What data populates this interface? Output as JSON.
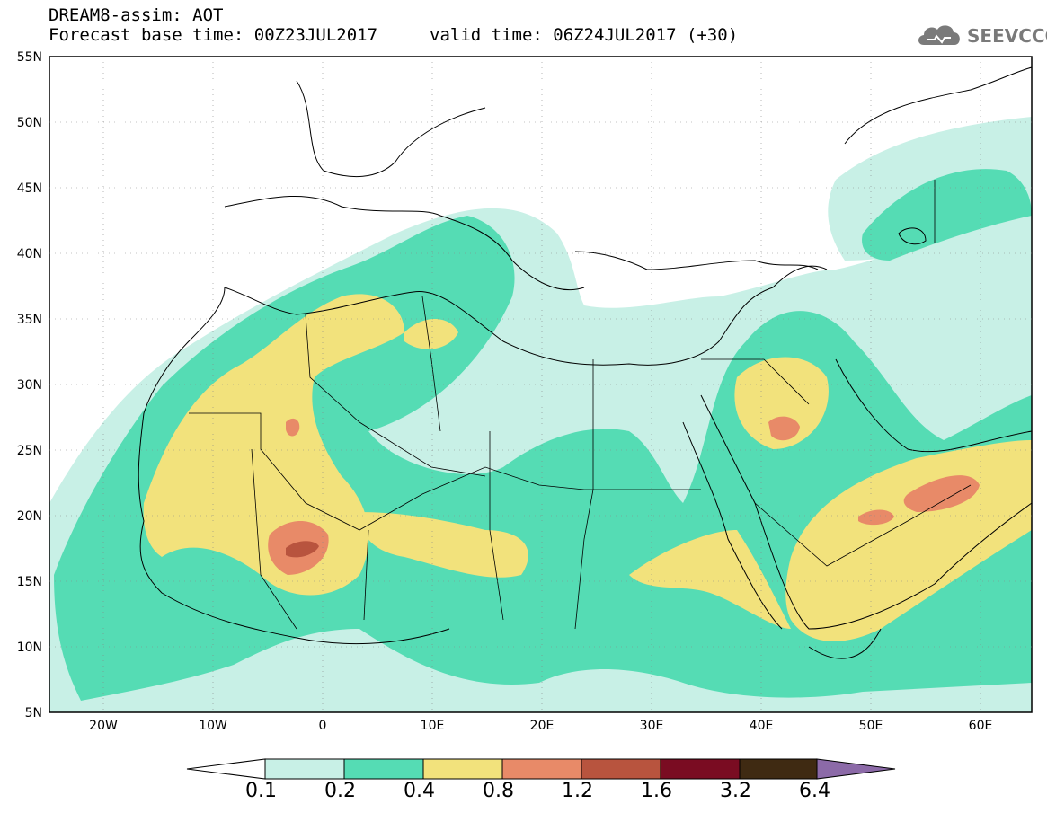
{
  "header": {
    "title_line1": "DREAM8-assim: AOT",
    "title_line2": "Forecast base time: 00Z23JUL2017",
    "valid_time": "valid time: 06Z24JUL2017 (+30)",
    "logo_text": "SEEVCCC"
  },
  "map": {
    "lat_labels": [
      "55N",
      "50N",
      "45N",
      "40N",
      "35N",
      "30N",
      "25N",
      "20N",
      "15N",
      "10N",
      "5N"
    ],
    "lon_labels": [
      "20W",
      "10W",
      "0",
      "10E",
      "20E",
      "30E",
      "40E",
      "50E",
      "60E"
    ]
  },
  "colorbar": {
    "labels": [
      "0.1",
      "0.2",
      "0.4",
      "0.8",
      "1.2",
      "1.6",
      "3.2",
      "6.4"
    ],
    "colors": [
      "#ffffff",
      "#c8f0e6",
      "#55dcb4",
      "#f2e27c",
      "#e88a68",
      "#b8543e",
      "#7a0c22",
      "#3f2a12",
      "#8c6aa8"
    ]
  },
  "fields": {
    "colors": {
      "low": "#c8f0e6",
      "mid": "#55dcb4",
      "high": "#f2e27c",
      "vhigh": "#e88a68",
      "xhigh": "#b8543e"
    }
  }
}
